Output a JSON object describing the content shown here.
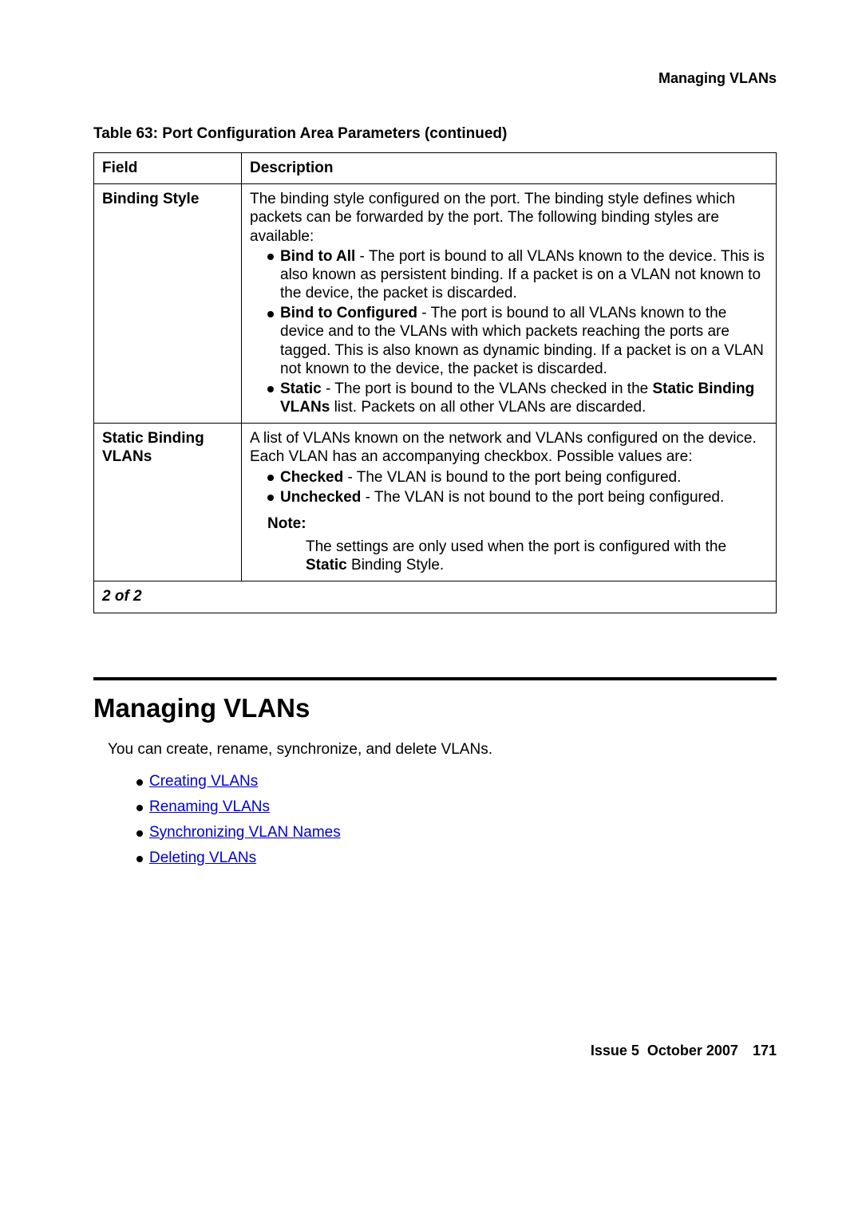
{
  "header": {
    "section": "Managing VLANs"
  },
  "table": {
    "caption": "Table 63: Port Configuration Area Parameters (continued)",
    "columns": [
      "Field",
      "Description"
    ],
    "rows": [
      {
        "field": "Binding Style",
        "intro": "The binding style configured on the port. The binding style defines which packets can be forwarded by the port. The following binding styles are available:",
        "items": [
          {
            "bold": "Bind to All",
            "rest": " - The port is bound to all VLANs known to the device. This is also known as persistent binding. If a packet is on a VLAN not known to the device, the packet is discarded."
          },
          {
            "bold": "Bind to Configured",
            "rest": " - The port is bound to all VLANs known to the device and to the VLANs with which packets reaching the ports are tagged. This is also known as dynamic binding. If a packet is on a VLAN not known to the device, the packet is discarded."
          },
          {
            "bold": "Static",
            "rest_pre": " - The port is bound to the VLANs checked in the ",
            "bold2": "Static Binding VLANs",
            "rest_post": " list. Packets on all other VLANs are discarded."
          }
        ]
      },
      {
        "field": "Static Binding VLANs",
        "intro": "A list of VLANs known on the network and VLANs configured on the device. Each VLAN has an accompanying checkbox. Possible values are:",
        "items": [
          {
            "bold": "Checked",
            "rest": " - The VLAN is bound to the port being configured."
          },
          {
            "bold": "Unchecked",
            "rest": " - The VLAN is not bound to the port being configured."
          }
        ],
        "note_label": "Note:",
        "note_pre": "The settings are only used when the port is configured with the ",
        "note_bold": "Static",
        "note_post": " Binding Style."
      }
    ],
    "pager": "2 of 2"
  },
  "section": {
    "title": "Managing VLANs",
    "intro": "You can create, rename, synchronize, and delete VLANs.",
    "links": [
      "Creating VLANs",
      "Renaming VLANs",
      "Synchronizing VLAN Names",
      "Deleting VLANs"
    ]
  },
  "footer": {
    "issue": "Issue 5",
    "date": "October 2007",
    "page": "171"
  },
  "colors": {
    "link": "#0000cc",
    "text": "#000000",
    "bg": "#ffffff"
  }
}
